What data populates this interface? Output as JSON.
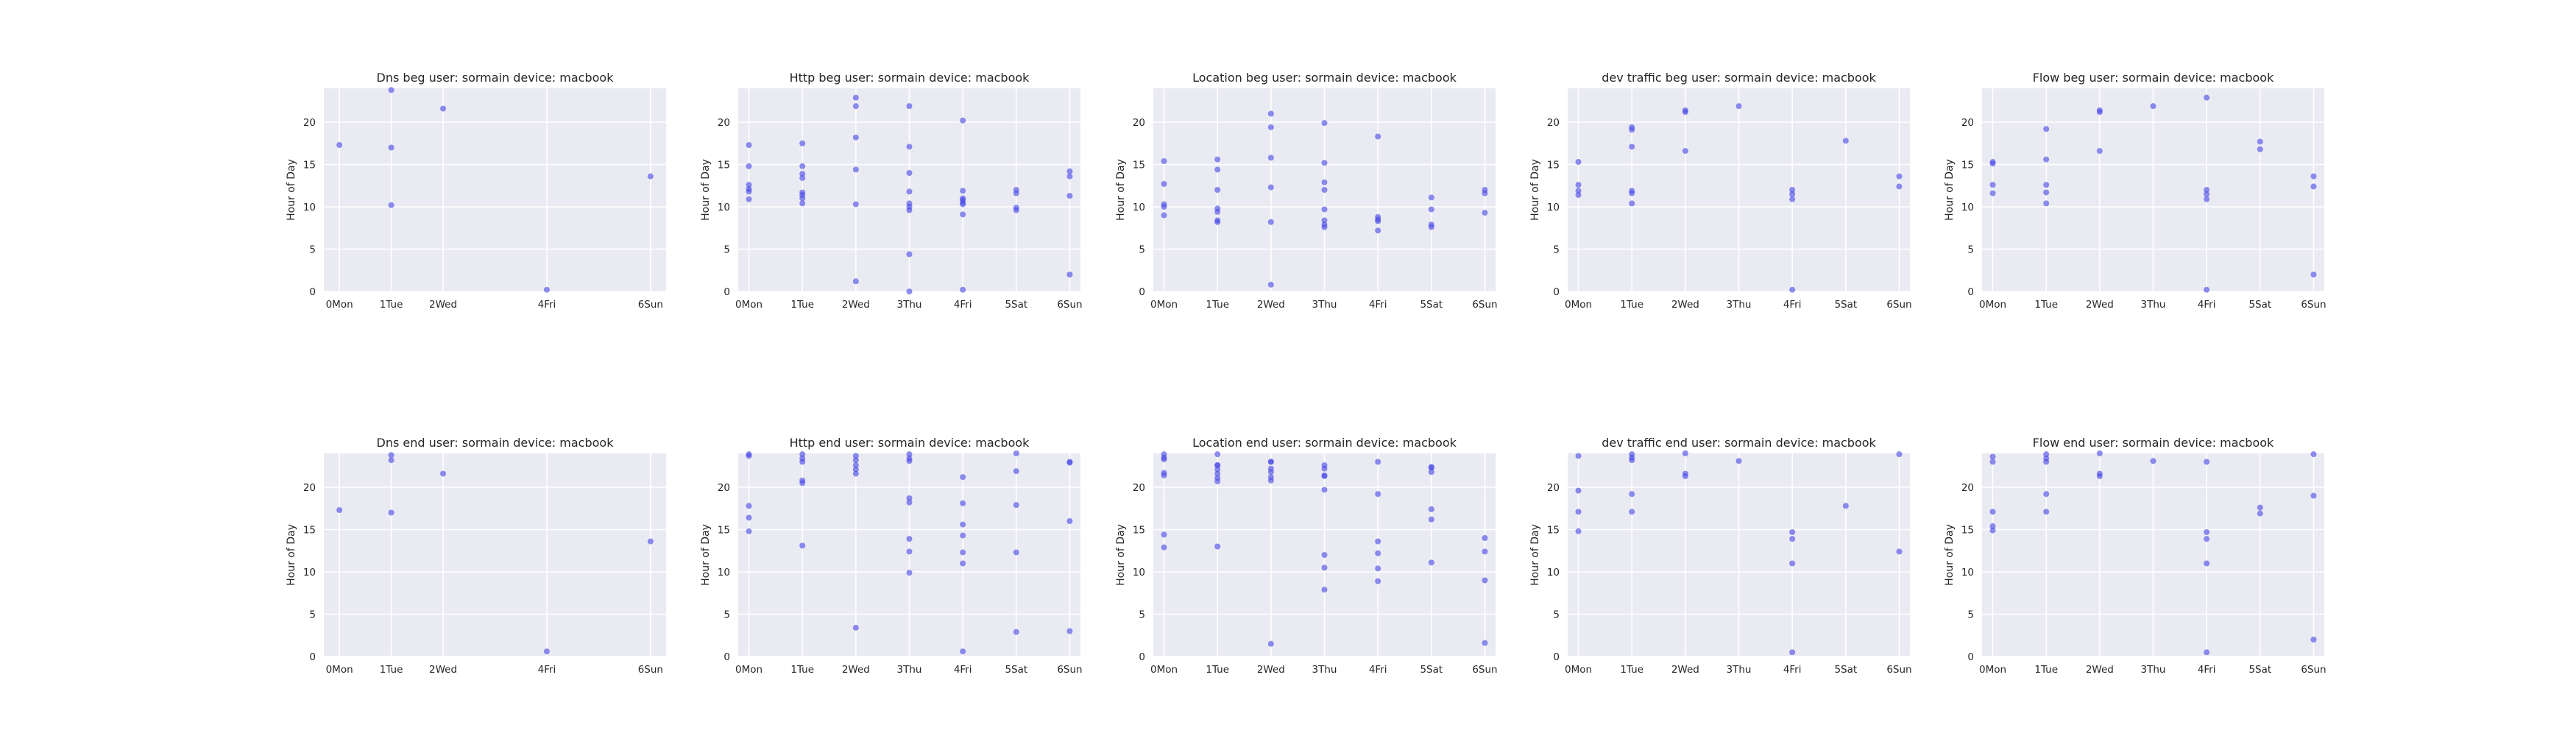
{
  "figure": {
    "background": "#ffffff",
    "panel_bg": "#eaeaf2",
    "grid_color": "#ffffff",
    "point_color": "#4848e6"
  },
  "chart_data": [
    {
      "type": "scatter",
      "title": "Dns beg user: sormain device: macbook",
      "ylabel": "Hour of Day",
      "xticks": [
        0,
        1,
        2,
        4,
        6
      ],
      "xticklabels": [
        "0Mon",
        "1Tue",
        "2Wed",
        "4Fri",
        "6Sun"
      ],
      "yticks": [
        0,
        5,
        10,
        15,
        20
      ],
      "xlim": [
        -0.3,
        6.3
      ],
      "ylim": [
        0,
        24
      ],
      "grid": true,
      "x": [
        0,
        1,
        1,
        1,
        2,
        4,
        6
      ],
      "y": [
        17.3,
        23.8,
        17.0,
        10.2,
        21.6,
        0.2,
        13.6
      ]
    },
    {
      "type": "scatter",
      "title": "Http beg user: sormain device: macbook",
      "ylabel": "Hour of Day",
      "xticks": [
        0,
        1,
        2,
        3,
        4,
        5,
        6
      ],
      "xticklabels": [
        "0Mon",
        "1Tue",
        "2Wed",
        "3Thu",
        "4Fri",
        "5Sat",
        "6Sun"
      ],
      "yticks": [
        0,
        5,
        10,
        15,
        20
      ],
      "xlim": [
        -0.2,
        6.2
      ],
      "ylim": [
        0,
        24
      ],
      "grid": true,
      "x": [
        0,
        0,
        0,
        0,
        0,
        0,
        1,
        1,
        1,
        1,
        1,
        1,
        1,
        1,
        2,
        2,
        2,
        2,
        2,
        2,
        3,
        3,
        3,
        3,
        3,
        3,
        3,
        3,
        3,
        4,
        4,
        4,
        4,
        4,
        4,
        4,
        4,
        5,
        5,
        5,
        5,
        6,
        6,
        6,
        6
      ],
      "y": [
        17.3,
        14.8,
        12.6,
        12.1,
        11.8,
        10.9,
        17.5,
        14.8,
        13.9,
        13.4,
        11.7,
        11.4,
        11.0,
        10.4,
        22.9,
        21.9,
        18.2,
        14.4,
        10.3,
        1.2,
        21.9,
        17.1,
        14.0,
        11.8,
        10.4,
        10.0,
        9.6,
        4.4,
        0.0,
        20.2,
        11.9,
        11.0,
        10.8,
        10.5,
        10.3,
        9.1,
        0.2,
        12.0,
        11.6,
        9.9,
        9.6,
        14.2,
        13.6,
        11.3,
        2.0
      ]
    },
    {
      "type": "scatter",
      "title": "Location beg user: sormain device: macbook",
      "ylabel": "Hour of Day",
      "xticks": [
        0,
        1,
        2,
        3,
        4,
        5,
        6
      ],
      "xticklabels": [
        "0Mon",
        "1Tue",
        "2Wed",
        "3Thu",
        "4Fri",
        "5Sat",
        "6Sun"
      ],
      "yticks": [
        0,
        5,
        10,
        15,
        20
      ],
      "xlim": [
        -0.2,
        6.2
      ],
      "ylim": [
        0,
        24
      ],
      "grid": true,
      "x": [
        0,
        0,
        0,
        0,
        0,
        1,
        1,
        1,
        1,
        1,
        1,
        1,
        2,
        2,
        2,
        2,
        2,
        2,
        3,
        3,
        3,
        3,
        3,
        3,
        3,
        3,
        4,
        4,
        4,
        4,
        4,
        5,
        5,
        5,
        5,
        6,
        6,
        6
      ],
      "y": [
        15.4,
        12.7,
        10.3,
        10.0,
        9.0,
        15.6,
        14.4,
        12.0,
        9.8,
        9.4,
        8.4,
        8.2,
        21.0,
        19.4,
        15.8,
        12.3,
        8.2,
        0.8,
        19.9,
        15.2,
        12.9,
        12.0,
        9.7,
        8.4,
        7.9,
        7.6,
        18.3,
        8.8,
        8.5,
        8.3,
        7.2,
        11.1,
        9.7,
        7.9,
        7.6,
        12.0,
        11.6,
        9.3
      ]
    },
    {
      "type": "scatter",
      "title": "dev traffic beg user: sormain device: macbook",
      "ylabel": "Hour of Day",
      "xticks": [
        0,
        1,
        2,
        3,
        4,
        5,
        6
      ],
      "xticklabels": [
        "0Mon",
        "1Tue",
        "2Wed",
        "3Thu",
        "4Fri",
        "5Sat",
        "6Sun"
      ],
      "yticks": [
        0,
        5,
        10,
        15,
        20
      ],
      "xlim": [
        -0.2,
        6.2
      ],
      "ylim": [
        0,
        24
      ],
      "grid": true,
      "x": [
        0,
        0,
        0,
        0,
        1,
        1,
        1,
        1,
        1,
        1,
        2,
        2,
        2,
        3,
        4,
        4,
        4,
        4,
        5,
        6,
        6
      ],
      "y": [
        15.3,
        12.6,
        11.9,
        11.4,
        19.4,
        19.1,
        17.1,
        11.9,
        11.6,
        10.4,
        21.4,
        21.2,
        16.6,
        21.9,
        12.0,
        11.5,
        10.9,
        0.2,
        17.8,
        13.6,
        12.4
      ]
    },
    {
      "type": "scatter",
      "title": "Flow beg user: sormain device: macbook",
      "ylabel": "Hour of Day",
      "xticks": [
        0,
        1,
        2,
        3,
        4,
        5,
        6
      ],
      "xticklabels": [
        "0Mon",
        "1Tue",
        "2Wed",
        "3Thu",
        "4Fri",
        "5Sat",
        "6Sun"
      ],
      "yticks": [
        0,
        5,
        10,
        15,
        20
      ],
      "xlim": [
        -0.2,
        6.2
      ],
      "ylim": [
        0,
        24
      ],
      "grid": true,
      "x": [
        0,
        0,
        0,
        0,
        1,
        1,
        1,
        1,
        1,
        2,
        2,
        2,
        3,
        4,
        4,
        4,
        4,
        4,
        5,
        5,
        6,
        6,
        6
      ],
      "y": [
        15.3,
        15.1,
        12.6,
        11.6,
        19.2,
        15.6,
        12.6,
        11.7,
        10.4,
        21.4,
        21.2,
        16.6,
        21.9,
        22.9,
        12.0,
        11.5,
        10.9,
        0.2,
        17.7,
        16.8,
        13.6,
        12.4,
        2.0
      ]
    },
    {
      "type": "scatter",
      "title": "Dns end user: sormain device: macbook",
      "ylabel": "Hour of Day",
      "xticks": [
        0,
        1,
        2,
        4,
        6
      ],
      "xticklabels": [
        "0Mon",
        "1Tue",
        "2Wed",
        "4Fri",
        "6Sun"
      ],
      "yticks": [
        0,
        5,
        10,
        15,
        20
      ],
      "xlim": [
        -0.3,
        6.3
      ],
      "ylim": [
        0,
        24
      ],
      "grid": true,
      "x": [
        0,
        1,
        1,
        1,
        2,
        4,
        6
      ],
      "y": [
        17.3,
        23.8,
        23.2,
        17.0,
        21.6,
        0.6,
        13.6
      ]
    },
    {
      "type": "scatter",
      "title": "Http end user: sormain device: macbook",
      "ylabel": "Hour of Day",
      "xticks": [
        0,
        1,
        2,
        3,
        4,
        5,
        6
      ],
      "xticklabels": [
        "0Mon",
        "1Tue",
        "2Wed",
        "3Thu",
        "4Fri",
        "5Sat",
        "6Sun"
      ],
      "yticks": [
        0,
        5,
        10,
        15,
        20
      ],
      "xlim": [
        -0.2,
        6.2
      ],
      "ylim": [
        0,
        24
      ],
      "grid": true,
      "x": [
        0,
        0,
        0,
        0,
        0,
        1,
        1,
        1,
        1,
        1,
        1,
        2,
        2,
        2,
        2,
        2,
        2,
        3,
        3,
        3,
        3,
        3,
        3,
        3,
        3,
        4,
        4,
        4,
        4,
        4,
        4,
        4,
        5,
        5,
        5,
        5,
        5,
        6,
        6,
        6,
        6
      ],
      "y": [
        23.9,
        23.7,
        17.8,
        16.4,
        14.8,
        23.9,
        23.4,
        23.0,
        20.8,
        20.5,
        13.1,
        23.7,
        23.2,
        22.6,
        22.1,
        21.6,
        3.4,
        23.9,
        23.4,
        18.7,
        18.2,
        13.9,
        12.4,
        9.9,
        23.1,
        15.6,
        14.3,
        12.3,
        11.0,
        0.6,
        21.2,
        18.1,
        17.9,
        12.3,
        2.9,
        24.0,
        21.9,
        16.0,
        3.0,
        23.0,
        22.9
      ]
    },
    {
      "type": "scatter",
      "title": "Location end user: sormain device: macbook",
      "ylabel": "Hour of Day",
      "xticks": [
        0,
        1,
        2,
        3,
        4,
        5,
        6
      ],
      "xticklabels": [
        "0Mon",
        "1Tue",
        "2Wed",
        "3Thu",
        "4Fri",
        "5Sat",
        "6Sun"
      ],
      "yticks": [
        0,
        5,
        10,
        15,
        20
      ],
      "xlim": [
        -0.2,
        6.2
      ],
      "ylim": [
        0,
        24
      ],
      "grid": true,
      "x": [
        0,
        0,
        0,
        0,
        0,
        0,
        0,
        1,
        1,
        1,
        1,
        1,
        1,
        1,
        1,
        2,
        2,
        2,
        2,
        2,
        2,
        2,
        3,
        3,
        3,
        3,
        3,
        3,
        3,
        3,
        4,
        4,
        4,
        4,
        4,
        4,
        5,
        5,
        5,
        5,
        5,
        5,
        6,
        6,
        6,
        6
      ],
      "y": [
        23.9,
        23.3,
        21.7,
        21.4,
        14.4,
        12.9,
        23.5,
        23.9,
        22.6,
        22.1,
        21.6,
        21.1,
        20.7,
        13.0,
        22.6,
        22.2,
        21.8,
        21.2,
        20.8,
        1.5,
        23.0,
        23.0,
        22.6,
        22.2,
        21.4,
        12.0,
        10.5,
        7.9,
        21.3,
        19.7,
        13.6,
        12.2,
        10.4,
        8.9,
        23.0,
        19.2,
        17.4,
        16.2,
        11.1,
        21.8,
        22.4,
        22.3,
        14.0,
        1.6,
        12.4,
        9.0
      ]
    },
    {
      "type": "scatter",
      "title": "dev traffic end user: sormain device: macbook",
      "ylabel": "Hour of Day",
      "xticks": [
        0,
        1,
        2,
        3,
        4,
        5,
        6
      ],
      "xticklabels": [
        "0Mon",
        "1Tue",
        "2Wed",
        "3Thu",
        "4Fri",
        "5Sat",
        "6Sun"
      ],
      "yticks": [
        0,
        5,
        10,
        15,
        20
      ],
      "xlim": [
        -0.2,
        6.2
      ],
      "ylim": [
        0,
        24
      ],
      "grid": true,
      "x": [
        0,
        0,
        0,
        0,
        1,
        1,
        1,
        1,
        1,
        2,
        2,
        2,
        3,
        4,
        4,
        4,
        4,
        5,
        6,
        6
      ],
      "y": [
        23.7,
        19.6,
        17.1,
        14.8,
        23.9,
        23.5,
        19.2,
        17.1,
        23.2,
        21.6,
        21.3,
        24.0,
        23.1,
        14.7,
        13.9,
        11.0,
        0.5,
        17.8,
        23.9,
        12.4
      ]
    },
    {
      "type": "scatter",
      "title": "Flow end user: sormain device: macbook",
      "ylabel": "Hour of Day",
      "xticks": [
        0,
        1,
        2,
        3,
        4,
        5,
        6
      ],
      "xticklabels": [
        "0Mon",
        "1Tue",
        "2Wed",
        "3Thu",
        "4Fri",
        "5Sat",
        "6Sun"
      ],
      "yticks": [
        0,
        5,
        10,
        15,
        20
      ],
      "xlim": [
        -0.2,
        6.2
      ],
      "ylim": [
        0,
        24
      ],
      "grid": true,
      "x": [
        0,
        0,
        0,
        0,
        0,
        1,
        1,
        1,
        1,
        1,
        2,
        2,
        2,
        3,
        4,
        4,
        4,
        4,
        4,
        5,
        5,
        6,
        6,
        6
      ],
      "y": [
        23.6,
        23.0,
        17.1,
        15.4,
        14.9,
        23.9,
        23.4,
        23.0,
        19.2,
        17.1,
        21.6,
        21.3,
        24.0,
        23.1,
        23.0,
        14.7,
        13.9,
        11.0,
        0.5,
        17.6,
        16.9,
        23.9,
        19.0,
        2.0
      ]
    }
  ]
}
